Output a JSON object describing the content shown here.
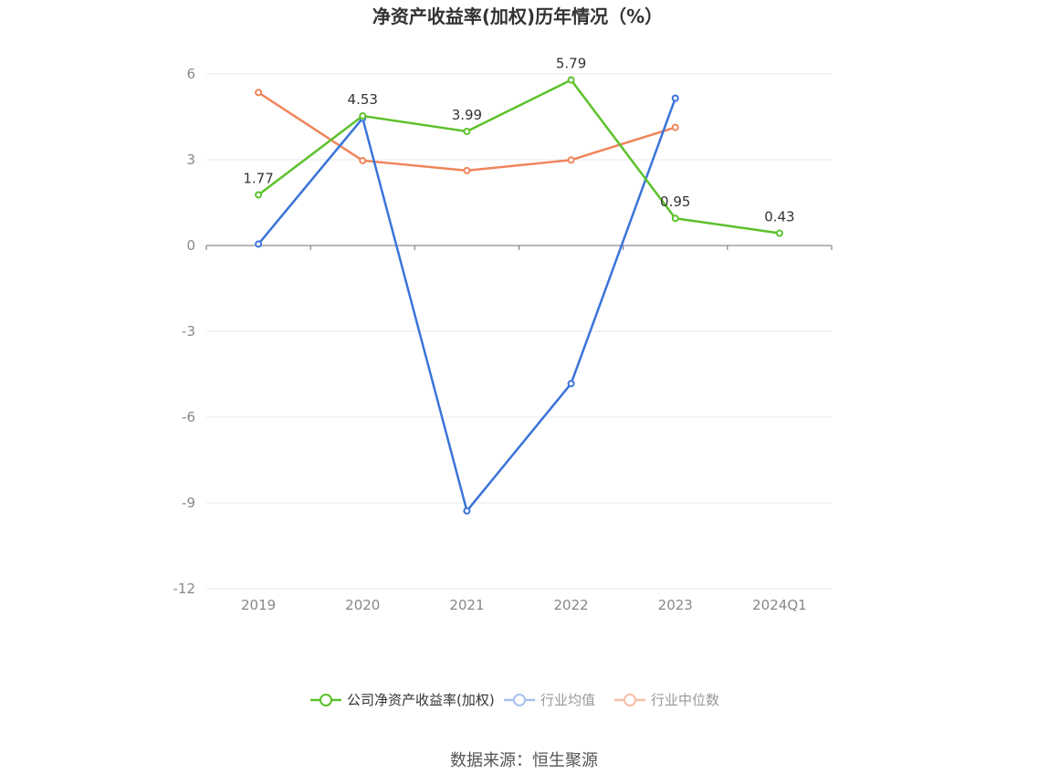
{
  "chart_data": {
    "type": "line",
    "title": "净资产收益率(加权)历年情况（%）",
    "categories": [
      "2019",
      "2020",
      "2021",
      "2022",
      "2023",
      "2024Q1"
    ],
    "ylim": [
      -12,
      6
    ],
    "yticks": [
      6,
      3,
      0,
      -3,
      -6,
      -9,
      -12
    ],
    "ytick_labels": [
      "6",
      "3",
      "0",
      "-3",
      "-6",
      "-9",
      "-12"
    ],
    "grid": true,
    "legend_position": "bottom",
    "series": [
      {
        "name": "公司净资产收益率(加权)",
        "color": "#5cc12c",
        "values": [
          1.77,
          4.53,
          3.99,
          5.79,
          0.95,
          0.43
        ],
        "labels": [
          "1.77",
          "4.53",
          "3.99",
          "5.79",
          "0.95",
          "0.43"
        ]
      },
      {
        "name": "行业均值",
        "color": "#3a74d9",
        "values": [
          0.05,
          4.45,
          -9.28,
          -4.83,
          5.15,
          null
        ]
      },
      {
        "name": "行业中位数",
        "color": "#f0845a",
        "values": [
          5.35,
          2.97,
          2.62,
          2.99,
          4.13,
          null
        ]
      }
    ]
  },
  "legend": [
    {
      "label": "公司净资产收益率(加权)",
      "color": "#5cc12c",
      "text_color": "#333333",
      "fill": "#ffffff"
    },
    {
      "label": "行业均值",
      "color": "#a7c1ee",
      "text_color": "#999999",
      "fill": "#ffffff"
    },
    {
      "label": "行业中位数",
      "color": "#f7c0aa",
      "text_color": "#999999",
      "fill": "#ffffff"
    }
  ],
  "source_text": "数据来源：恒生聚源"
}
